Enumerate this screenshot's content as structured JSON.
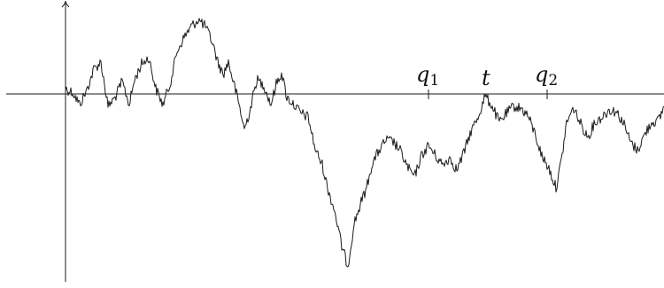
{
  "diagram": {
    "kind": "random walk path with axes",
    "line_color": "#1a1a1a",
    "axis_color": "#1a1a1a",
    "labels": {
      "q1_main": "q",
      "q1_sub": "1",
      "t": "t",
      "q2_main": "q",
      "q2_sub": "2"
    }
  }
}
